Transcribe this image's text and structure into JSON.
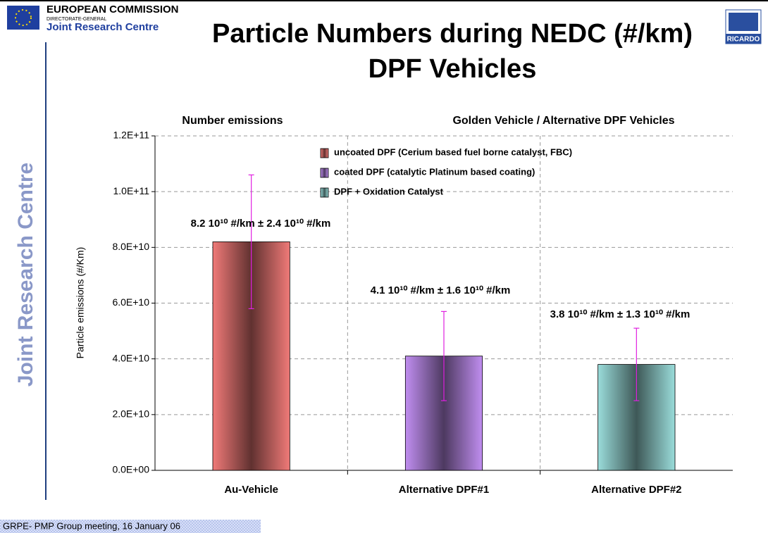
{
  "header": {
    "org": "EUROPEAN COMMISSION",
    "dg": "DIRECTORATE-GENERAL",
    "centre": "Joint Research Centre",
    "logo_right": "RICARDO",
    "side_text": "Joint Research Centre"
  },
  "footer": "GRPE- PMP Group meeting, 16 January 06",
  "chart_data": {
    "type": "bar",
    "title": "Particle Numbers during NEDC (#/km)",
    "subtitle": "DPF Vehicles",
    "panel_title_left": "Number emissions",
    "panel_title_right": "Golden Vehicle / Alternative DPF Vehicles",
    "ylabel": "Particle emissions (#/Km)",
    "categories": [
      "Au-Vehicle",
      "Alternative DPF#1",
      "Alternative DPF#2"
    ],
    "values": [
      82000000000,
      41000000000,
      38000000000
    ],
    "errors": [
      24000000000,
      16000000000,
      13000000000
    ],
    "value_labels": [
      "8.2 10¹⁰ #/km ± 2.4 10¹⁰ #/km",
      "4.1 10¹⁰ #/km ± 1.6 10¹⁰ #/km",
      "3.8 10¹⁰ #/km ± 1.3 10¹⁰ #/km"
    ],
    "colors": [
      "#f07a78",
      "#c08ef0",
      "#9adcda"
    ],
    "legend": [
      "uncoated  DPF (Cerium based fuel borne catalyst, FBC)",
      "coated DPF (catalytic Platinum based coating)",
      "DPF + Oxidation Catalyst"
    ],
    "error_color": "#e020e0",
    "ylim": [
      0,
      120000000000
    ],
    "yticks": [
      {
        "value": 0,
        "label": "0.0E+00"
      },
      {
        "value": 20000000000,
        "label": "2.0E+10"
      },
      {
        "value": 40000000000,
        "label": "4.0E+10"
      },
      {
        "value": 60000000000,
        "label": "6.0E+10"
      },
      {
        "value": 80000000000,
        "label": "8.0E+10"
      },
      {
        "value": 100000000000,
        "label": "1.0E+11"
      },
      {
        "value": 120000000000,
        "label": "1.2E+11"
      }
    ],
    "grid": true
  }
}
